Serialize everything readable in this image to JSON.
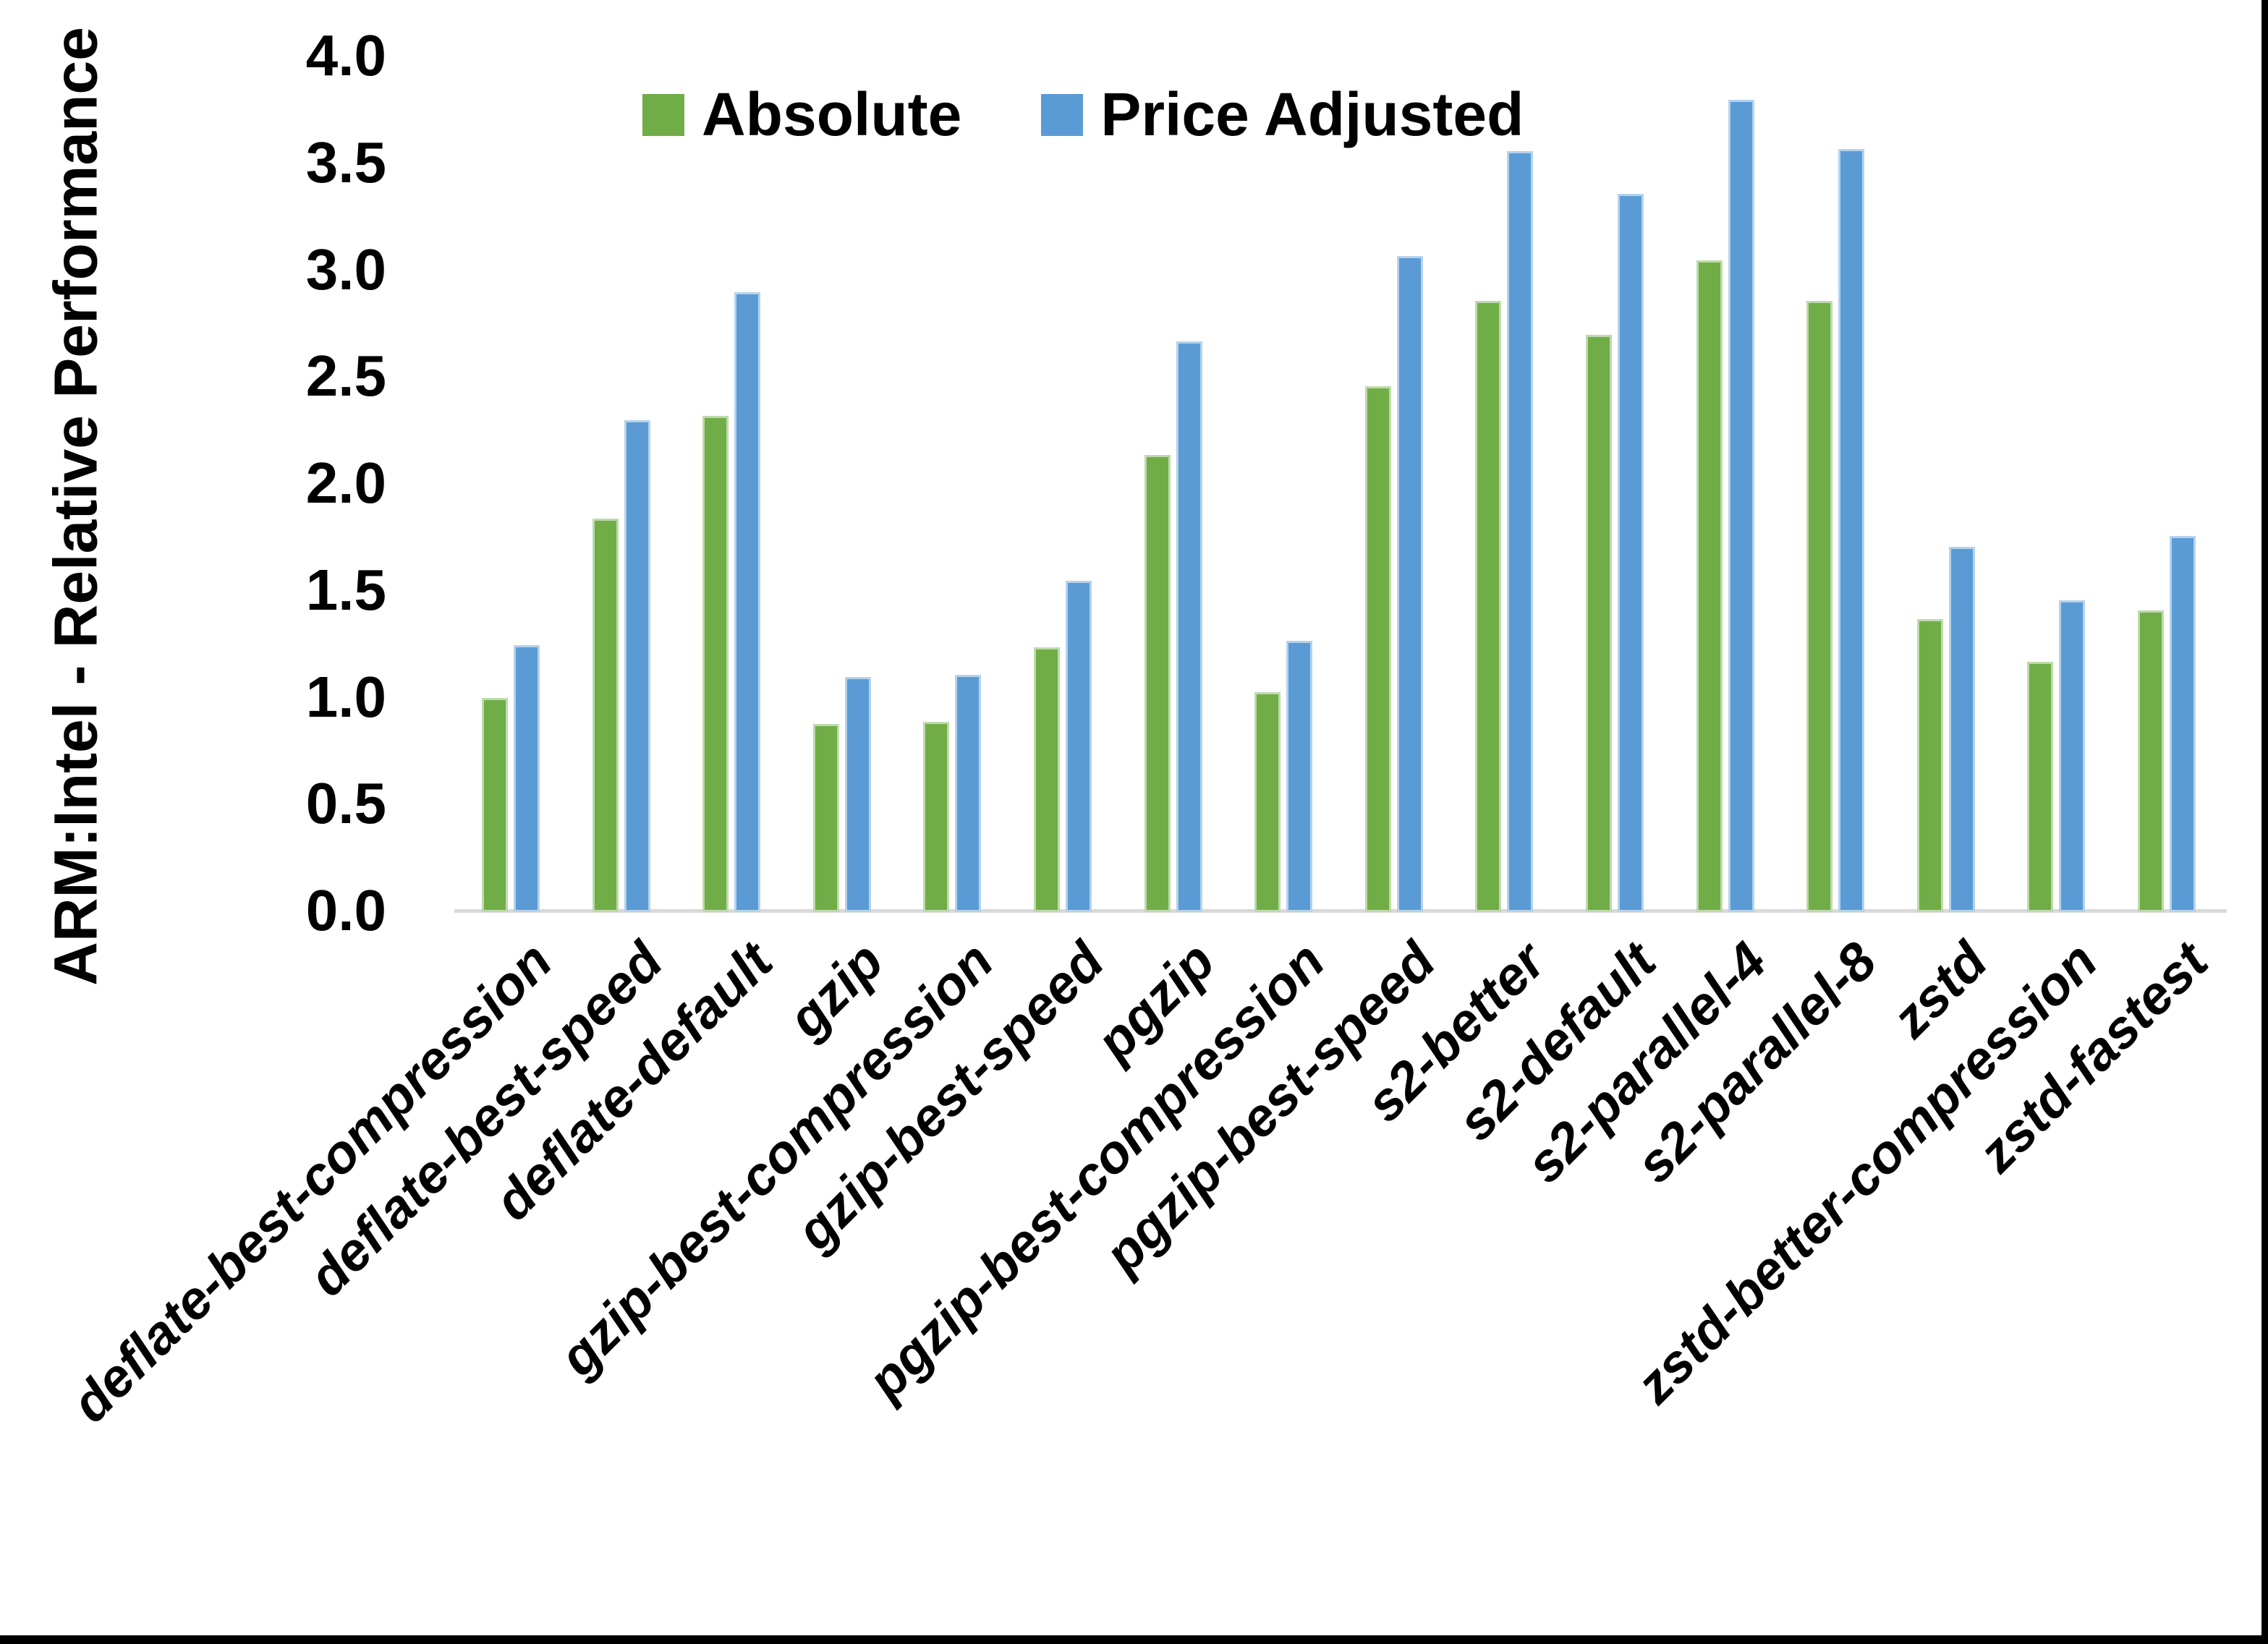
{
  "chart_data": {
    "type": "bar",
    "title": "",
    "ylabel": "ARM:Intel - Relative Performance",
    "xlabel": "",
    "ylim": [
      0.0,
      4.0
    ],
    "ytick_step": 0.5,
    "ytick_labels": [
      "0.0",
      "0.5",
      "1.0",
      "1.5",
      "2.0",
      "2.5",
      "3.0",
      "3.5",
      "4.0"
    ],
    "grid": false,
    "legend_position": "top-center",
    "categories": [
      "deflate-best-compression",
      "deflate-best-speed",
      "deflate-default",
      "gzip",
      "gzip-best-compression",
      "gzip-best-speed",
      "pgzip",
      "pgzip-best-compression",
      "pgzip-best-speed",
      "s2-better",
      "s2-default",
      "s2-parallel-4",
      "s2-parallel-8",
      "zstd",
      "zstd-better-compression",
      "zstd-fastest"
    ],
    "series": [
      {
        "name": "Absolute",
        "color": "#70AD47",
        "values": [
          1.0,
          1.84,
          2.32,
          0.88,
          0.89,
          1.24,
          2.14,
          1.03,
          2.46,
          2.86,
          2.7,
          3.05,
          2.86,
          1.37,
          1.17,
          1.41
        ]
      },
      {
        "name": "Price Adjusted",
        "color": "#5B9BD5",
        "values": [
          1.25,
          2.3,
          2.9,
          1.1,
          1.11,
          1.55,
          2.67,
          1.27,
          3.07,
          3.56,
          3.36,
          3.8,
          3.57,
          1.71,
          1.46,
          1.76
        ]
      }
    ],
    "axis_line_color": "#D9D9D9"
  }
}
